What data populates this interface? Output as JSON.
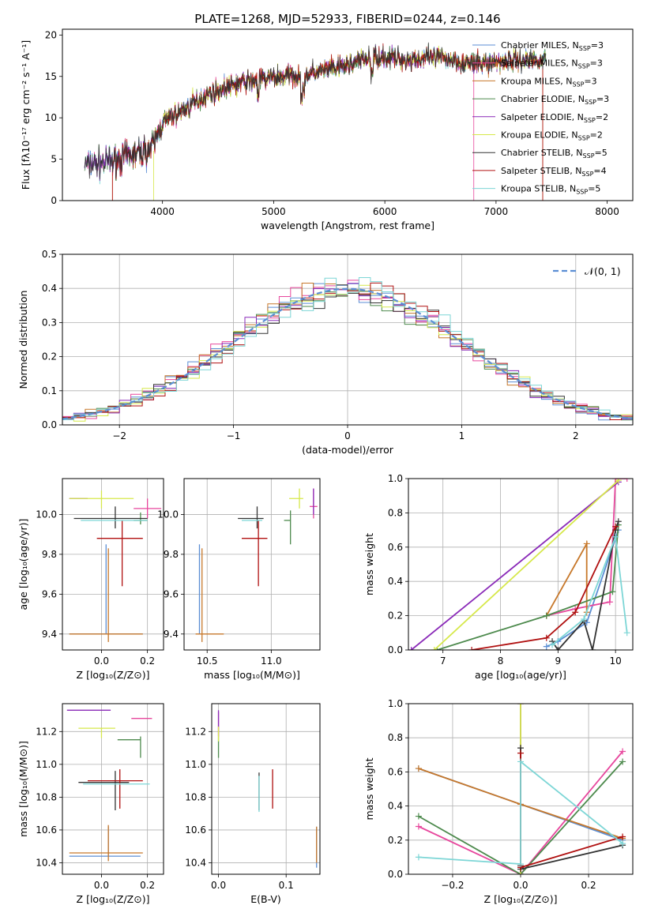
{
  "figure_title": "PLATE=1268, MJD=52933, FIBERID=0244, z=0.146",
  "models": [
    {
      "name": "Chabrier MILES, N",
      "sub": "SSP",
      "suffix": "=3",
      "color": "#5b8ed4"
    },
    {
      "name": "Salpeter MILES, N",
      "sub": "SSP",
      "suffix": "=3",
      "color": "#e7479d"
    },
    {
      "name": "Kroupa MILES, N",
      "sub": "SSP",
      "suffix": "=3",
      "color": "#c7782b"
    },
    {
      "name": "Chabrier ELODIE, N",
      "sub": "SSP",
      "suffix": "=3",
      "color": "#4d8a4d"
    },
    {
      "name": "Salpeter ELODIE, N",
      "sub": "SSP",
      "suffix": "=2",
      "color": "#8a2ab8"
    },
    {
      "name": "Kroupa ELODIE, N",
      "sub": "SSP",
      "suffix": "=2",
      "color": "#d6e84a"
    },
    {
      "name": "Chabrier STELIB, N",
      "sub": "SSP",
      "suffix": "=5",
      "color": "#333333"
    },
    {
      "name": "Salpeter STELIB, N",
      "sub": "SSP",
      "suffix": "=4",
      "color": "#b01010"
    },
    {
      "name": "Kroupa STELIB, N",
      "sub": "SSP",
      "suffix": "=5",
      "color": "#7dd6d6"
    }
  ],
  "chart_data": [
    {
      "id": "spectrum",
      "type": "line",
      "xlabel": "wavelength [Angstrom, rest frame]",
      "ylabel": "Flux [fλ10⁻¹⁷ erg cm⁻² s⁻¹ A⁻¹]",
      "xlim": [
        3100,
        8230
      ],
      "ylim": [
        0,
        20.7
      ],
      "xticks": [
        4000,
        5000,
        6000,
        7000,
        8000
      ],
      "yticks": [
        0,
        5,
        10,
        15,
        20
      ],
      "grid": false,
      "legend": "top-right",
      "series_model": "all nine models",
      "continuum": [
        [
          3300,
          4.4
        ],
        [
          3500,
          4.6
        ],
        [
          3700,
          5.4
        ],
        [
          3900,
          6.2
        ],
        [
          4000,
          9.5
        ],
        [
          4150,
          10.6
        ],
        [
          4400,
          12.8
        ],
        [
          4700,
          14.2
        ],
        [
          5000,
          14.9
        ],
        [
          5300,
          15.3
        ],
        [
          5600,
          16.1
        ],
        [
          5900,
          17.5
        ],
        [
          6200,
          17.0
        ],
        [
          6500,
          17.3
        ],
        [
          6800,
          16.5
        ],
        [
          7100,
          16.9
        ],
        [
          7400,
          17.1
        ]
      ]
    },
    {
      "id": "residuals",
      "type": "histogram",
      "xlabel": "(data-model)/error",
      "ylabel": "Normed distribution",
      "xlim": [
        -2.5,
        2.5
      ],
      "ylim": [
        0,
        0.5
      ],
      "xticks": [
        -2,
        -1,
        0,
        1,
        2
      ],
      "yticks": [
        0.0,
        0.1,
        0.2,
        0.3,
        0.4,
        0.5
      ],
      "grid": true,
      "legend": "top-right",
      "reference_curve": "𝒩(0, 1)",
      "bin_width": 0.1
    },
    {
      "id": "age-vs-z",
      "type": "errorbar",
      "xlabel": "Z [log₁₀(Z/Z⊙)]",
      "ylabel": "age  [log₁₀(age/yr)]",
      "xlim": [
        -0.17,
        0.27
      ],
      "ylim": [
        9.32,
        10.18
      ],
      "xticks": [
        0.0,
        0.2
      ],
      "yticks": [
        9.4,
        9.6,
        9.8,
        10.0
      ],
      "grid": true,
      "points": [
        {
          "x": 0.02,
          "y": 9.4,
          "xerr": [
            0.16,
            0.16
          ],
          "yerr": [
            0.0,
            0.45
          ]
        },
        {
          "x": 0.2,
          "y": 10.03,
          "xerr": [
            0.06,
            0.06
          ],
          "yerr": [
            0.05,
            0.05
          ]
        },
        {
          "x": 0.03,
          "y": 9.4,
          "xerr": [
            0.17,
            0.15
          ],
          "yerr": [
            0.04,
            0.43
          ]
        },
        {
          "x": 0.17,
          "y": 9.97,
          "xerr": [
            0.03,
            0.03
          ],
          "yerr": [
            0.02,
            0.04
          ]
        },
        {
          "x": -0.1,
          "y": 10.08,
          "xerr": [
            0.04,
            0.04
          ],
          "yerr": [
            0.0,
            0.0
          ]
        },
        {
          "x": 0.0,
          "y": 10.08,
          "xerr": [
            0.14,
            0.14
          ],
          "yerr": [
            0.05,
            0.04
          ]
        },
        {
          "x": 0.06,
          "y": 9.98,
          "xerr": [
            0.18,
            0.14
          ],
          "yerr": [
            0.05,
            0.06
          ]
        },
        {
          "x": 0.09,
          "y": 9.88,
          "xerr": [
            0.11,
            0.09
          ],
          "yerr": [
            0.24,
            0.09
          ]
        },
        {
          "x": 0.07,
          "y": 9.97,
          "xerr": [
            0.16,
            0.13
          ],
          "yerr": [
            0.0,
            0.0
          ]
        }
      ]
    },
    {
      "id": "age-vs-mass",
      "type": "errorbar",
      "xlabel": "mass [log₁₀(M/M⊙)]",
      "ylabel": "",
      "xlim": [
        10.32,
        11.38
      ],
      "ylim": [
        9.32,
        10.18
      ],
      "xticks": [
        10.5,
        11.0
      ],
      "yticks": [
        9.4,
        9.6,
        9.8,
        10.0
      ],
      "grid": true,
      "points": [
        {
          "x": 10.44,
          "y": 9.4,
          "xerr": [
            0.0,
            0.0
          ],
          "yerr": [
            0.0,
            0.45
          ]
        },
        {
          "x": 11.33,
          "y": 10.04,
          "xerr": [
            0.03,
            0.03
          ],
          "yerr": [
            0.06,
            0.09
          ]
        },
        {
          "x": 10.46,
          "y": 9.4,
          "xerr": [
            0.05,
            0.17
          ],
          "yerr": [
            0.04,
            0.43
          ]
        },
        {
          "x": 11.15,
          "y": 9.97,
          "xerr": [
            0.05,
            0.0
          ],
          "yerr": [
            0.12,
            0.05
          ]
        },
        {
          "x": 11.33,
          "y": 10.06,
          "xerr": [
            0.0,
            0.0
          ],
          "yerr": [
            0.06,
            0.07
          ]
        },
        {
          "x": 11.22,
          "y": 10.08,
          "xerr": [
            0.08,
            0.03
          ],
          "yerr": [
            0.05,
            0.05
          ]
        },
        {
          "x": 10.89,
          "y": 9.98,
          "xerr": [
            0.15,
            0.05
          ],
          "yerr": [
            0.05,
            0.06
          ]
        },
        {
          "x": 10.9,
          "y": 9.88,
          "xerr": [
            0.13,
            0.07
          ],
          "yerr": [
            0.24,
            0.09
          ]
        },
        {
          "x": 10.88,
          "y": 9.97,
          "xerr": [
            0.11,
            0.05
          ],
          "yerr": [
            0.0,
            0.0
          ]
        }
      ]
    },
    {
      "id": "weight-vs-age",
      "type": "line",
      "xlabel": "age  [log₁₀(age/yr)]",
      "ylabel": "mass weight",
      "xlim": [
        6.4,
        10.3
      ],
      "ylim": [
        0,
        1.0
      ],
      "xticks": [
        7,
        8,
        9,
        10
      ],
      "yticks": [
        0.0,
        0.2,
        0.4,
        0.6,
        0.8,
        1.0
      ],
      "grid": true,
      "series": [
        {
          "x": [
            8.8,
            9.0,
            9.5,
            10.05
          ],
          "y": [
            0.02,
            0.05,
            0.16,
            0.7
          ]
        },
        {
          "x": [
            8.8,
            9.3,
            9.9,
            10.0,
            10.2
          ],
          "y": [
            0.2,
            0.24,
            0.28,
            1.0,
            1.0
          ]
        },
        {
          "x": [
            8.8,
            9.5,
            9.5
          ],
          "y": [
            0.2,
            0.62,
            0.22
          ]
        },
        {
          "x": [
            6.9,
            8.8,
            9.95,
            10.05
          ],
          "y": [
            0.0,
            0.2,
            0.34,
            0.73
          ]
        },
        {
          "x": [
            6.45,
            10.05
          ],
          "y": [
            0.0,
            0.98
          ]
        },
        {
          "x": [
            6.85,
            10.05
          ],
          "y": [
            0.0,
            0.99
          ]
        },
        {
          "x": [
            8.9,
            9.0,
            9.45,
            9.6,
            10.0,
            10.05
          ],
          "y": [
            0.05,
            0.0,
            0.17,
            0.0,
            0.7,
            0.75
          ]
        },
        {
          "x": [
            7.5,
            8.8,
            9.3,
            10.0
          ],
          "y": [
            0.0,
            0.07,
            0.22,
            0.72
          ]
        },
        {
          "x": [
            8.9,
            9.45,
            10.0,
            10.2
          ],
          "y": [
            0.03,
            0.18,
            0.66,
            0.1
          ]
        }
      ]
    },
    {
      "id": "mass-vs-z",
      "type": "errorbar",
      "xlabel": "Z [log₁₀(Z/Z⊙)]",
      "ylabel": "mass [log₁₀(M/M⊙)]",
      "xlim": [
        -0.17,
        0.27
      ],
      "ylim": [
        10.33,
        11.37
      ],
      "xticks": [
        0.0,
        0.2
      ],
      "yticks": [
        10.4,
        10.6,
        10.8,
        11.0,
        11.2
      ],
      "grid": true,
      "points": [
        {
          "x": 0.03,
          "y": 10.44,
          "xerr": [
            0.17,
            0.14
          ],
          "yerr": [
            0.0,
            0.18
          ]
        },
        {
          "x": 0.2,
          "y": 11.28,
          "xerr": [
            0.07,
            0.02
          ],
          "yerr": [
            0.0,
            0.0
          ]
        },
        {
          "x": 0.03,
          "y": 10.46,
          "xerr": [
            0.17,
            0.15
          ],
          "yerr": [
            0.05,
            0.17
          ]
        },
        {
          "x": 0.17,
          "y": 11.15,
          "xerr": [
            0.1,
            0.0
          ],
          "yerr": [
            0.11,
            0.02
          ]
        },
        {
          "x": -0.03,
          "y": 11.33,
          "xerr": [
            0.12,
            0.07
          ],
          "yerr": [
            0.0,
            0.0
          ]
        },
        {
          "x": 0.0,
          "y": 11.22,
          "xerr": [
            0.1,
            0.06
          ],
          "yerr": [
            0.06,
            0.0
          ]
        },
        {
          "x": 0.06,
          "y": 10.89,
          "xerr": [
            0.16,
            0.06
          ],
          "yerr": [
            0.17,
            0.07
          ]
        },
        {
          "x": 0.08,
          "y": 10.9,
          "xerr": [
            0.14,
            0.1
          ],
          "yerr": [
            0.17,
            0.07
          ]
        },
        {
          "x": 0.07,
          "y": 10.88,
          "xerr": [
            0.15,
            0.14
          ],
          "yerr": [
            0.0,
            0.0
          ]
        }
      ]
    },
    {
      "id": "mass-vs-ebv",
      "type": "errorbar",
      "xlabel": "E(B-V)",
      "ylabel": "",
      "xlim": [
        -0.01,
        0.15
      ],
      "ylim": [
        10.33,
        11.37
      ],
      "xticks": [
        0.0,
        0.1
      ],
      "yticks": [
        10.4,
        10.6,
        10.8,
        11.0,
        11.2
      ],
      "grid": true,
      "points": [
        {
          "x": 0.145,
          "y": 10.45,
          "xerr": [
            0.0,
            0.0
          ],
          "yerr": [
            0.08,
            0.17
          ]
        },
        {
          "x": 0.0,
          "y": 11.22,
          "xerr": [
            0.0,
            0.0
          ],
          "yerr": [
            0.05,
            0.1
          ]
        },
        {
          "x": 0.145,
          "y": 10.46,
          "xerr": [
            0.0,
            0.0
          ],
          "yerr": [
            0.06,
            0.16
          ]
        },
        {
          "x": 0.0,
          "y": 11.15,
          "xerr": [
            0.0,
            0.0
          ],
          "yerr": [
            0.11,
            0.02
          ]
        },
        {
          "x": 0.0,
          "y": 11.25,
          "xerr": [
            0.0,
            0.0
          ],
          "yerr": [
            0.08,
            0.08
          ]
        },
        {
          "x": 0.0,
          "y": 11.2,
          "xerr": [
            0.0,
            0.0
          ],
          "yerr": [
            0.06,
            0.03
          ]
        },
        {
          "x": 0.06,
          "y": 10.85,
          "xerr": [
            0.0,
            0.0
          ],
          "yerr": [
            0.13,
            0.1
          ]
        },
        {
          "x": 0.08,
          "y": 10.85,
          "xerr": [
            0.0,
            0.0
          ],
          "yerr": [
            0.12,
            0.12
          ]
        },
        {
          "x": 0.06,
          "y": 10.83,
          "xerr": [
            0.0,
            0.0
          ],
          "yerr": [
            0.12,
            0.1
          ]
        }
      ]
    },
    {
      "id": "weight-vs-z",
      "type": "line",
      "xlabel": "Z [log₁₀(Z/Z⊙)]",
      "ylabel": "mass weight",
      "xlim": [
        -0.33,
        0.33
      ],
      "ylim": [
        0,
        1.0
      ],
      "xticks": [
        -0.2,
        0.0,
        0.2
      ],
      "yticks": [
        0.0,
        0.2,
        0.4,
        0.6,
        0.8,
        1.0
      ],
      "grid": true,
      "series": [
        {
          "x": [
            -0.3,
            0.0,
            0.3
          ],
          "y": [
            0.62,
            0.41,
            0.2
          ]
        },
        {
          "x": [
            -0.3,
            0.0,
            0.3
          ],
          "y": [
            0.28,
            0.0,
            0.72
          ]
        },
        {
          "x": [
            -0.3,
            0.0,
            0.3
          ],
          "y": [
            0.62,
            0.41,
            0.21
          ]
        },
        {
          "x": [
            -0.3,
            0.0,
            0.3
          ],
          "y": [
            0.34,
            0.0,
            0.66
          ]
        },
        {
          "x": [
            0.0,
            0.0
          ],
          "y": [
            0.0,
            1.0
          ]
        },
        {
          "x": [
            0.0,
            0.0
          ],
          "y": [
            0.0,
            1.0
          ]
        },
        {
          "x": [
            0.0,
            0.0,
            0.0,
            0.3
          ],
          "y": [
            0.74,
            0.05,
            0.03,
            0.17
          ]
        },
        {
          "x": [
            0.0,
            0.0,
            0.3
          ],
          "y": [
            0.71,
            0.04,
            0.22
          ]
        },
        {
          "x": [
            -0.3,
            0.0,
            0.0,
            0.3
          ],
          "y": [
            0.1,
            0.06,
            0.66,
            0.18
          ]
        }
      ]
    }
  ]
}
